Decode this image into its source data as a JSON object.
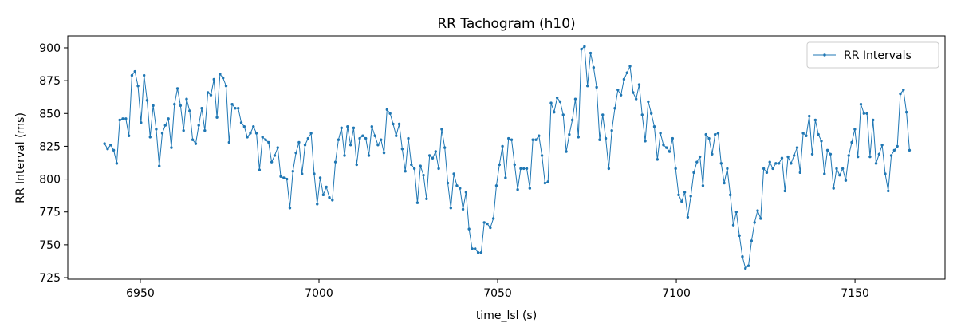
{
  "chart_data": {
    "type": "line",
    "title": "RR Tachogram (h10)",
    "xlabel": "time_lsl (s)",
    "ylabel": "RR Interval (ms)",
    "xlim": [
      6929.7,
      7175.2
    ],
    "ylim": [
      723.8,
      909.1
    ],
    "xticks": [
      6950,
      7000,
      7050,
      7100,
      7150
    ],
    "yticks": [
      725,
      750,
      775,
      800,
      825,
      850,
      875,
      900
    ],
    "grid": false,
    "legend": "upper right",
    "x": [
      6940,
      6940.85,
      6941.7,
      6942.55,
      6943.4,
      6944.25,
      6945.1,
      6945.95,
      6946.8,
      6947.65,
      6948.5,
      6949.35,
      6950.2,
      6951.05,
      6951.9,
      6952.75,
      6953.6,
      6954.45,
      6955.3,
      6956.15,
      6957,
      6957.85,
      6958.7,
      6959.55,
      6960.4,
      6961.25,
      6962.1,
      6962.95,
      6963.8,
      6964.65,
      6965.5,
      6966.35,
      6967.2,
      6968.05,
      6968.9,
      6969.75,
      6970.6,
      6971.45,
      6972.3,
      6973.15,
      6974,
      6974.85,
      6975.7,
      6976.55,
      6977.4,
      6978.25,
      6979.1,
      6979.95,
      6980.8,
      6981.65,
      6982.5,
      6983.35,
      6984.2,
      6985.05,
      6985.9,
      6986.75,
      6987.6,
      6988.45,
      6989.3,
      6990.15,
      6991,
      6991.85,
      6992.7,
      6993.55,
      6994.4,
      6995.25,
      6996.1,
      6996.95,
      6997.8,
      6998.65,
      6999.5,
      7000.35,
      7001.2,
      7002.05,
      7002.9,
      7003.75,
      7004.6,
      7005.45,
      7006.3,
      7007.15,
      7008,
      7008.85,
      7009.7,
      7010.55,
      7011.4,
      7012.25,
      7013.1,
      7013.95,
      7014.8,
      7015.65,
      7016.5,
      7017.35,
      7018.2,
      7019.05,
      7019.9,
      7020.75,
      7021.6,
      7022.45,
      7023.3,
      7024.15,
      7025,
      7025.85,
      7026.7,
      7027.55,
      7028.4,
      7029.25,
      7030.1,
      7030.95,
      7031.8,
      7032.65,
      7033.5,
      7034.35,
      7035.2,
      7036.05,
      7036.9,
      7037.75,
      7038.6,
      7039.45,
      7040.3,
      7041.15,
      7042,
      7042.85,
      7043.7,
      7044.55,
      7045.4,
      7046.25,
      7047.1,
      7047.95,
      7048.8,
      7049.65,
      7050.5,
      7051.35,
      7052.2,
      7053.05,
      7053.9,
      7054.75,
      7055.6,
      7056.45,
      7057.3,
      7058.15,
      7059,
      7059.85,
      7060.7,
      7061.55,
      7062.4,
      7063.25,
      7064.1,
      7064.95,
      7065.8,
      7066.65,
      7067.5,
      7068.35,
      7069.2,
      7070.05,
      7070.9,
      7071.75,
      7072.6,
      7073.45,
      7074.3,
      7075.15,
      7076,
      7076.85,
      7077.7,
      7078.55,
      7079.4,
      7080.25,
      7081.1,
      7081.95,
      7082.8,
      7083.65,
      7084.5,
      7085.35,
      7086.2,
      7087.05,
      7087.9,
      7088.75,
      7089.6,
      7090.45,
      7091.3,
      7092.15,
      7093,
      7093.85,
      7094.7,
      7095.55,
      7096.4,
      7097.25,
      7098.1,
      7098.95,
      7099.8,
      7100.65,
      7101.5,
      7102.35,
      7103.2,
      7104.05,
      7104.9,
      7105.75,
      7106.6,
      7107.45,
      7108.3,
      7109.15,
      7110,
      7110.85,
      7111.7,
      7112.55,
      7113.4,
      7114.25,
      7115.1,
      7115.95,
      7116.8,
      7117.65,
      7118.5,
      7119.35,
      7120.2,
      7121.05,
      7121.9,
      7122.75,
      7123.6,
      7124.45,
      7125.3,
      7126.15,
      7127,
      7127.85,
      7128.7,
      7129.55,
      7130.4,
      7131.25,
      7132.1,
      7132.95,
      7133.8,
      7134.65,
      7135.5,
      7136.35,
      7137.2,
      7138.05,
      7138.9,
      7139.75,
      7140.6,
      7141.45,
      7142.3,
      7143.15,
      7144,
      7144.85,
      7145.7,
      7146.55,
      7147.4,
      7148.25,
      7149.1,
      7149.95,
      7150.8,
      7151.65,
      7152.5,
      7153.35,
      7154.2,
      7155.05,
      7155.9,
      7156.75,
      7157.6,
      7158.45,
      7159.3,
      7160.15,
      7161,
      7161.85,
      7162.7,
      7163.55,
      7164.4,
      7165.25
    ],
    "series": [
      {
        "name": "RR Intervals",
        "color": "#1f77b4",
        "values": [
          827,
          823,
          826,
          822,
          812,
          845,
          846,
          846,
          833,
          879,
          882,
          871,
          843,
          879,
          860,
          832,
          856,
          838,
          810,
          835,
          841,
          846,
          824,
          857,
          869,
          856,
          837,
          861,
          852,
          830,
          827,
          841,
          854,
          837,
          866,
          864,
          876,
          847,
          880,
          877,
          871,
          828,
          857,
          854,
          854,
          843,
          840,
          832,
          835,
          840,
          835,
          807,
          832,
          830,
          828,
          813,
          818,
          824,
          802,
          801,
          800,
          778,
          806,
          820,
          828,
          804,
          826,
          831,
          835,
          804,
          781,
          801,
          788,
          794,
          786,
          784,
          813,
          830,
          839,
          818,
          840,
          826,
          839,
          811,
          831,
          833,
          831,
          818,
          840,
          833,
          826,
          830,
          820,
          853,
          850,
          842,
          833,
          842,
          823,
          806,
          831,
          811,
          808,
          782,
          810,
          803,
          785,
          818,
          816,
          821,
          808,
          838,
          824,
          797,
          778,
          804,
          795,
          793,
          777,
          790,
          762,
          747,
          747,
          744,
          744,
          767,
          766,
          763,
          770,
          795,
          811,
          825,
          801,
          831,
          830,
          811,
          792,
          808,
          808,
          808,
          793,
          830,
          830,
          833,
          818,
          797,
          798,
          858,
          851,
          862,
          859,
          849,
          821,
          834,
          845,
          861,
          832,
          899,
          901,
          871,
          896,
          885,
          870,
          830,
          849,
          831,
          808,
          837,
          854,
          868,
          864,
          876,
          881,
          886,
          866,
          861,
          872,
          849,
          829,
          859,
          850,
          840,
          815,
          835,
          826,
          824,
          821,
          831,
          808,
          788,
          783,
          790,
          771,
          787,
          805,
          813,
          817,
          795,
          834,
          831,
          819,
          834,
          835,
          812,
          797,
          808,
          788,
          765,
          775,
          757,
          741,
          732,
          734,
          753,
          767,
          776,
          770,
          808,
          805,
          813,
          808,
          812,
          812,
          816,
          791,
          817,
          812,
          818,
          824,
          805,
          835,
          833,
          848,
          819,
          845,
          834,
          829,
          804,
          822,
          819,
          793,
          808,
          803,
          808,
          799,
          818,
          828,
          838,
          817,
          857,
          850,
          850,
          817,
          845,
          812,
          819,
          826,
          804,
          791,
          818,
          822,
          825,
          865,
          868,
          851,
          822
        ]
      }
    ]
  }
}
